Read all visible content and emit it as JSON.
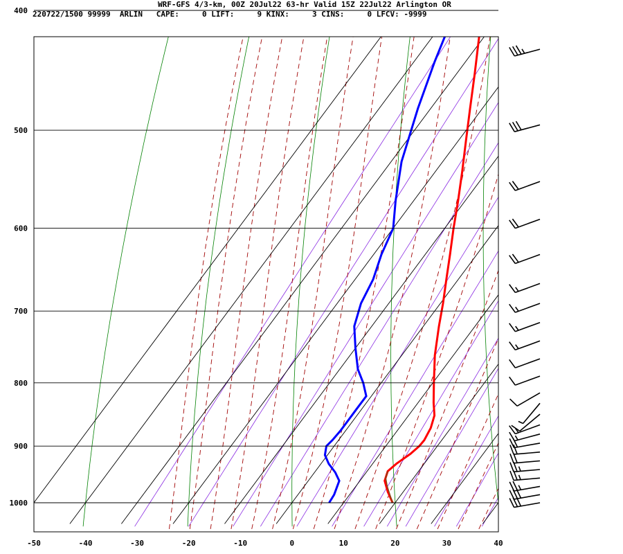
{
  "header": {
    "title": "WRF-GFS 4/3-km, 00Z 20Jul22 63-hr Valid 15Z 22Jul22 Arlington OR",
    "info": "220722/1500 99999  ARLIN   CAPE:     0 LIFT:     9 KINX:     3 CINS:     0 LFCV: -9999"
  },
  "chart_data": {
    "type": "line",
    "title": "WRF-GFS 4/3-km, 00Z 20Jul22 63-hr Valid 15Z 22Jul22 Arlington OR",
    "xlabel": "",
    "ylabel": "",
    "x_ticks": [
      -50,
      -40,
      -30,
      -20,
      -10,
      0,
      10,
      20,
      30,
      40
    ],
    "y_ticks": [
      400,
      500,
      600,
      700,
      800,
      900,
      1000
    ],
    "xlim": [
      -50,
      40
    ],
    "ylim_pressure_hpa": [
      1040,
      400
    ],
    "skew_t": true,
    "grid": true,
    "colors": {
      "temperature": "#ff0000",
      "dewpoint": "#0000ff",
      "dry_adiabats": "#008000",
      "moist_adiabats": "#a00000",
      "mixing_ratio": "#8a2be2",
      "grid": "#000000",
      "parcel": "#8b4513"
    },
    "series": [
      {
        "key": "temperature",
        "p": [
          1000,
          980,
          960,
          943,
          930,
          913,
          900,
          890,
          870,
          850,
          830,
          800,
          760,
          720,
          690,
          660,
          630,
          600,
          570,
          540,
          510,
          480,
          450,
          420,
          410
        ],
        "t": [
          19.5,
          17.0,
          14.8,
          14.0,
          14.6,
          15.9,
          16.5,
          16.6,
          16.1,
          15.0,
          13.0,
          10.2,
          6.4,
          3.0,
          0.5,
          -2.3,
          -5.2,
          -8.3,
          -11.4,
          -14.8,
          -18.5,
          -22.4,
          -26.5,
          -31.0,
          -32.5
        ]
      },
      {
        "key": "dewpoint",
        "p": [
          1000,
          985,
          960,
          945,
          930,
          915,
          900,
          890,
          875,
          858,
          840,
          820,
          800,
          780,
          750,
          720,
          690,
          660,
          630,
          600,
          570,
          530,
          480,
          440,
          410
        ],
        "t": [
          7.2,
          7.0,
          6.0,
          4.0,
          1.5,
          -0.5,
          -1.5,
          -1.2,
          -1.0,
          -1.0,
          -1.0,
          -1.0,
          -3.5,
          -6.5,
          -10.0,
          -13.4,
          -15.4,
          -16.5,
          -18.5,
          -20.0,
          -23.5,
          -28.0,
          -32.5,
          -36.0,
          -38.5
        ]
      },
      {
        "key": "parcel",
        "p": [
          1000,
          985,
          970,
          955,
          943
        ],
        "t": [
          19.5,
          17.8,
          16.1,
          14.6,
          14.0
        ]
      }
    ],
    "wind_barbs": [
      {
        "p": 1000,
        "dir_deg": 260,
        "speed_kt": 30
      },
      {
        "p": 985,
        "dir_deg": 260,
        "speed_kt": 30
      },
      {
        "p": 970,
        "dir_deg": 260,
        "speed_kt": 25
      },
      {
        "p": 955,
        "dir_deg": 265,
        "speed_kt": 25
      },
      {
        "p": 940,
        "dir_deg": 265,
        "speed_kt": 25
      },
      {
        "p": 925,
        "dir_deg": 265,
        "speed_kt": 20
      },
      {
        "p": 910,
        "dir_deg": 265,
        "speed_kt": 20
      },
      {
        "p": 895,
        "dir_deg": 260,
        "speed_kt": 20
      },
      {
        "p": 880,
        "dir_deg": 255,
        "speed_kt": 15
      },
      {
        "p": 865,
        "dir_deg": 250,
        "speed_kt": 15
      },
      {
        "p": 848,
        "dir_deg": 230,
        "speed_kt": 10
      },
      {
        "p": 831,
        "dir_deg": 220,
        "speed_kt": 5
      },
      {
        "p": 815,
        "dir_deg": 240,
        "speed_kt": 10
      },
      {
        "p": 790,
        "dir_deg": 250,
        "speed_kt": 10
      },
      {
        "p": 765,
        "dir_deg": 250,
        "speed_kt": 10
      },
      {
        "p": 740,
        "dir_deg": 250,
        "speed_kt": 15
      },
      {
        "p": 715,
        "dir_deg": 250,
        "speed_kt": 15
      },
      {
        "p": 690,
        "dir_deg": 250,
        "speed_kt": 15
      },
      {
        "p": 665,
        "dir_deg": 250,
        "speed_kt": 15
      },
      {
        "p": 630,
        "dir_deg": 250,
        "speed_kt": 20
      },
      {
        "p": 590,
        "dir_deg": 250,
        "speed_kt": 20
      },
      {
        "p": 550,
        "dir_deg": 250,
        "speed_kt": 20
      },
      {
        "p": 495,
        "dir_deg": 255,
        "speed_kt": 30
      },
      {
        "p": 430,
        "dir_deg": 255,
        "speed_kt": 35
      }
    ]
  }
}
